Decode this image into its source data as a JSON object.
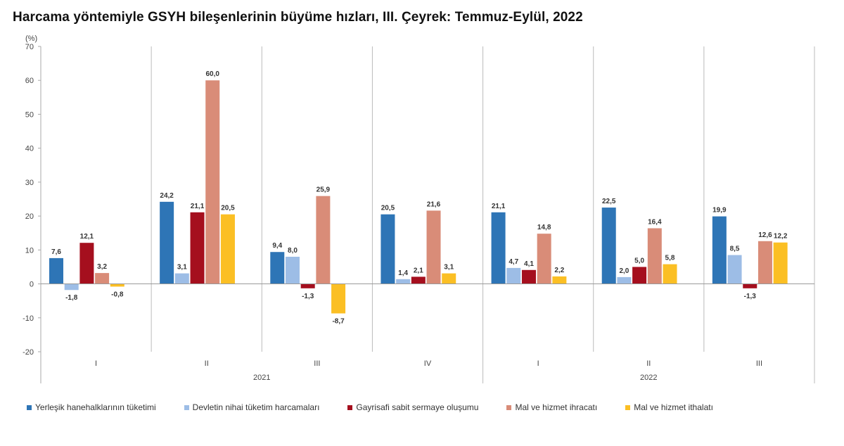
{
  "title": "Harcama yöntemiyle GSYH bileşenlerinin büyüme hızları, III. Çeyrek: Temmuz-Eylül, 2022",
  "chart_data": {
    "type": "bar",
    "title": "Harcama yöntemiyle GSYH bileşenlerinin büyüme hızları, III. Çeyrek: Temmuz-Eylül, 2022",
    "ylabel": "(%)",
    "ylim": [
      -20,
      70
    ],
    "yticks": [
      -20,
      -10,
      0,
      10,
      20,
      30,
      40,
      50,
      60,
      70
    ],
    "categories": [
      "I",
      "II",
      "III",
      "IV",
      "I",
      "II",
      "III"
    ],
    "year_groups": [
      {
        "label": "2021",
        "count": 4
      },
      {
        "label": "2022",
        "count": 3
      }
    ],
    "grid": false,
    "legend_position": "bottom",
    "series": [
      {
        "name": "Yerleşik hanehalklarının tüketimi",
        "color": "#2e75b6",
        "values": [
          7.6,
          24.2,
          9.4,
          20.5,
          21.1,
          22.5,
          19.9
        ]
      },
      {
        "name": "Devletin nihai tüketim harcamaları",
        "color": "#9dbde6",
        "values": [
          -1.8,
          3.1,
          8.0,
          1.4,
          4.7,
          2.0,
          8.5
        ]
      },
      {
        "name": "Gayrisafi sabit sermaye oluşumu",
        "color": "#a50f1e",
        "values": [
          12.1,
          21.1,
          -1.3,
          2.1,
          4.1,
          5.0,
          -1.3
        ]
      },
      {
        "name": "Mal ve hizmet ihracatı",
        "color": "#d98c78",
        "values": [
          3.2,
          60.0,
          25.9,
          21.6,
          14.8,
          16.4,
          12.6
        ]
      },
      {
        "name": "Mal ve hizmet ithalatı",
        "color": "#fbbf24",
        "values": [
          -0.8,
          20.5,
          -8.7,
          3.1,
          2.2,
          5.8,
          12.2
        ]
      }
    ]
  }
}
